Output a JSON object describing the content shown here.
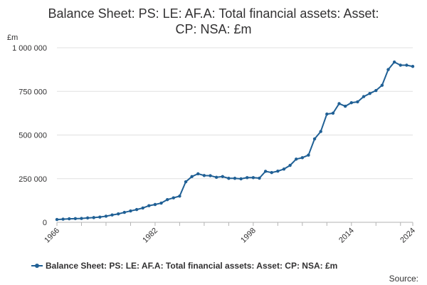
{
  "chart_data": {
    "type": "line",
    "title_lines": [
      "Balance Sheet: PS: LE: AF.A: Total financial assets: Asset:",
      "CP: NSA: £m"
    ],
    "y_unit": "£m",
    "ylim": [
      0,
      1000000
    ],
    "y_ticks": [
      0,
      250000,
      500000,
      750000,
      1000000
    ],
    "y_tick_labels": [
      "0",
      "250 000",
      "500 000",
      "750 000",
      "1 000 000"
    ],
    "xlim": [
      1966,
      2024
    ],
    "x_ticks": [
      1966,
      1982,
      1998,
      2014,
      2024
    ],
    "x_tick_labels": [
      "1966",
      "1982",
      "1998",
      "2014",
      "2024"
    ],
    "grid": true,
    "legend_position": "bottom",
    "colors": {
      "series": "#206095",
      "grid": "#e0e0e0",
      "axis": "#b3b3b3"
    },
    "series": [
      {
        "name": "Balance Sheet: PS: LE: AF.A: Total financial assets: Asset: CP: NSA: £m",
        "x": [
          1966,
          1967,
          1968,
          1969,
          1970,
          1971,
          1972,
          1973,
          1974,
          1975,
          1976,
          1977,
          1978,
          1979,
          1980,
          1981,
          1982,
          1983,
          1984,
          1985,
          1986,
          1987,
          1988,
          1989,
          1990,
          1991,
          1992,
          1993,
          1994,
          1995,
          1996,
          1997,
          1998,
          1999,
          2000,
          2001,
          2002,
          2003,
          2004,
          2005,
          2006,
          2007,
          2008,
          2009,
          2010,
          2011,
          2012,
          2013,
          2014,
          2015,
          2016,
          2017,
          2018,
          2019,
          2020,
          2021,
          2022,
          2023,
          2024
        ],
        "values": [
          16000,
          18000,
          20000,
          21000,
          22000,
          25000,
          27000,
          30000,
          35000,
          42000,
          48000,
          57000,
          65000,
          73000,
          82000,
          95000,
          102000,
          110000,
          130000,
          140000,
          150000,
          232000,
          262000,
          278000,
          268000,
          267000,
          258000,
          262000,
          252000,
          252000,
          249000,
          256000,
          256000,
          253000,
          292000,
          285000,
          293000,
          305000,
          326000,
          362000,
          370000,
          385000,
          478000,
          520000,
          620000,
          625000,
          680000,
          665000,
          685000,
          690000,
          720000,
          738000,
          755000,
          785000,
          875000,
          918000,
          900000,
          900000,
          893000
        ]
      }
    ]
  },
  "source_label": "Source:"
}
